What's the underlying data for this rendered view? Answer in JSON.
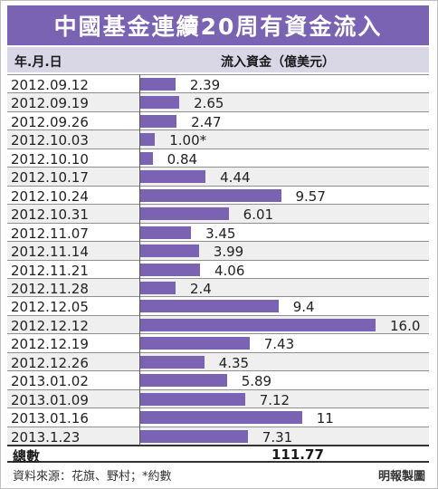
{
  "title": "中國基金連續20周有資金流入",
  "header": {
    "date_col": "年.月.日",
    "value_col": "流入資金（億美元）"
  },
  "chart_data": {
    "type": "bar",
    "orientation": "horizontal",
    "title": "中國基金連續20周有資金流入",
    "xlabel": "流入資金（億美元）",
    "ylabel": "年.月.日",
    "xlim": [
      0,
      16
    ],
    "grid": false,
    "bar_color": "#7a63b2",
    "categories": [
      "2012.09.12",
      "2012.09.19",
      "2012.09.26",
      "2012.10.03",
      "2012.10.10",
      "2012.10.17",
      "2012.10.24",
      "2012.10.31",
      "2012.11.07",
      "2012.11.14",
      "2012.11.21",
      "2012.11.28",
      "2012.12.05",
      "2012.12.12",
      "2012.12.19",
      "2012.12.26",
      "2013.01.02",
      "2013.01.09",
      "2013.01.16",
      "2013.1.23"
    ],
    "values": [
      2.39,
      2.65,
      2.47,
      1.0,
      0.84,
      4.44,
      9.57,
      6.01,
      3.45,
      3.99,
      4.06,
      2.4,
      9.4,
      16.0,
      7.43,
      4.35,
      5.89,
      7.12,
      11,
      7.31
    ],
    "labels": [
      "2.39",
      "2.65",
      "2.47",
      "1.00*",
      "0.84",
      "4.44",
      "9.57",
      "6.01",
      "3.45",
      "3.99",
      "4.06",
      "2.4",
      "9.4",
      "16.0",
      "7.43",
      "4.35",
      "5.89",
      "7.12",
      "11",
      "7.31"
    ]
  },
  "total": {
    "label": "總數",
    "value": "111.77"
  },
  "footer": {
    "source": "資料來源：花旗、野村；*約數",
    "credit": "明報製圖"
  }
}
